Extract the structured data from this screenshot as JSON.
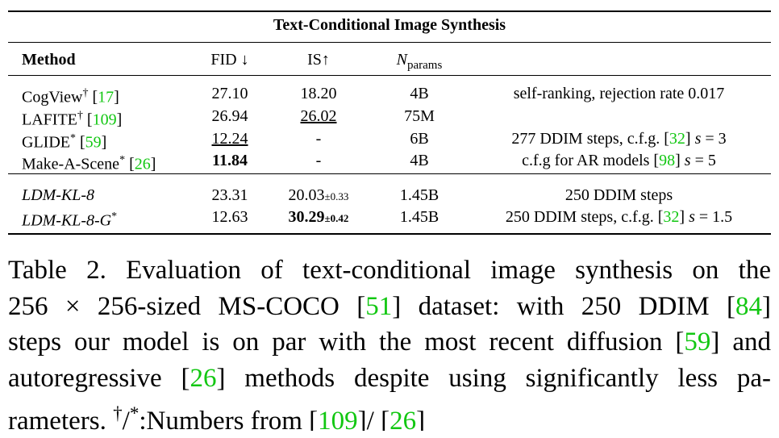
{
  "table": {
    "title": "Text-Conditional Image Synthesis",
    "headers": [
      [
        {
          "text": "Method",
          "style": "b"
        }
      ],
      "FID ↓",
      "IS↑",
      [
        {
          "text": "N",
          "style": "i"
        },
        {
          "text": "params",
          "style": "sub"
        }
      ]
    ],
    "rows": [
      [
        [
          {
            "text": "CogView"
          },
          {
            "text": "†",
            "style": "sup"
          },
          {
            "text": " ["
          },
          {
            "text": "17",
            "style": "link"
          },
          {
            "text": "]"
          }
        ],
        "27.10",
        "18.20",
        "4B",
        "self-ranking, rejection rate 0.017"
      ],
      [
        [
          {
            "text": "LAFITE"
          },
          {
            "text": "†",
            "style": "sup"
          },
          {
            "text": " ["
          },
          {
            "text": "109",
            "style": "link"
          },
          {
            "text": "]"
          }
        ],
        "26.94",
        [
          {
            "text": "26.02",
            "style": "u"
          }
        ],
        "75M"
      ],
      [
        [
          {
            "text": "GLIDE"
          },
          {
            "text": "*",
            "style": "sup"
          },
          {
            "text": " ["
          },
          {
            "text": "59",
            "style": "link"
          },
          {
            "text": "]"
          }
        ],
        [
          {
            "text": "12.24",
            "style": "u"
          }
        ],
        "-",
        "6B",
        [
          {
            "text": "277 DDIM steps, c.f.g. ["
          },
          {
            "text": "32",
            "style": "link"
          },
          {
            "text": "] "
          },
          {
            "text": "s",
            "style": "i"
          },
          {
            "text": " = 3"
          }
        ]
      ],
      [
        [
          {
            "text": "Make-A-Scene"
          },
          {
            "text": "*",
            "style": "sup"
          },
          {
            "text": " ["
          },
          {
            "text": "26",
            "style": "link"
          },
          {
            "text": "]"
          }
        ],
        [
          {
            "text": "11.84",
            "style": "b"
          }
        ],
        "-",
        "4B",
        [
          {
            "text": "c.f.g for AR models ["
          },
          {
            "text": "98",
            "style": "link"
          },
          {
            "text": "] "
          },
          {
            "text": "s",
            "style": "i"
          },
          {
            "text": " = 5"
          }
        ]
      ],
      [
        [
          {
            "text": "LDM-KL-8",
            "style": "i"
          }
        ],
        "23.31",
        [
          {
            "text": "20.03"
          },
          {
            "text": "±0.33",
            "style": "small"
          }
        ],
        "1.45B",
        "250 DDIM steps"
      ],
      [
        [
          {
            "text": "LDM-KL-8-G",
            "style": "i"
          },
          {
            "text": "*",
            "style": "sup"
          }
        ],
        "12.63",
        [
          {
            "text": "30.29",
            "style": "b"
          },
          {
            "text": "±0.42",
            "style": "smallb"
          }
        ],
        "1.45B",
        [
          {
            "text": "250 DDIM steps, c.f.g. ["
          },
          {
            "text": "32",
            "style": "link"
          },
          {
            "text": "] "
          },
          {
            "text": "s",
            "style": "i"
          },
          {
            "text": " = 1.5"
          }
        ]
      ]
    ]
  },
  "caption": [
    [
      {
        "text": "Table 2.   Evaluation of text-conditional image synthesis on the"
      }
    ],
    [
      {
        "text": "256 × 256-sized MS-COCO ["
      },
      {
        "text": "51",
        "style": "link"
      },
      {
        "text": "] dataset:  with 250 DDIM ["
      },
      {
        "text": "84",
        "style": "link"
      },
      {
        "text": "]"
      }
    ],
    [
      {
        "text": "steps our model is on par with the most recent diffusion ["
      },
      {
        "text": "59",
        "style": "link"
      },
      {
        "text": "] and"
      }
    ],
    [
      {
        "text": "autoregressive ["
      },
      {
        "text": "26",
        "style": "link"
      },
      {
        "text": "] methods despite using significantly less pa-"
      }
    ],
    [
      {
        "text": "rameters. "
      },
      {
        "text": "†",
        "style": "sup"
      },
      {
        "text": "/"
      },
      {
        "text": "*",
        "style": "sup"
      },
      {
        "text": ":Numbers from ["
      },
      {
        "text": "109",
        "style": "link"
      },
      {
        "text": "]/ ["
      },
      {
        "text": "26",
        "style": "link"
      },
      {
        "text": "]"
      }
    ]
  ]
}
